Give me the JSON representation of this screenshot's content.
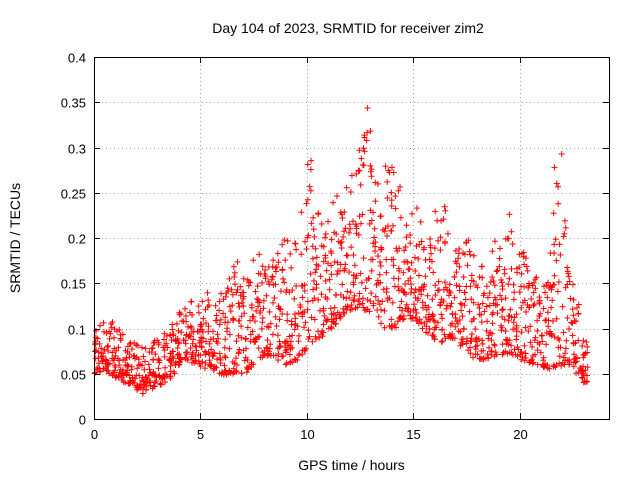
{
  "chart_data": {
    "type": "scatter",
    "title": "Day 104 of 2023, SRMTID for receiver zim2",
    "xlabel": "GPS time / hours",
    "ylabel": "SRMTID / TECUs",
    "xlim": [
      0,
      24.2
    ],
    "ylim": [
      0,
      0.4
    ],
    "xticks": [
      0,
      5,
      10,
      15,
      20
    ],
    "xtick_labels": [
      "0",
      "5",
      "10",
      "15",
      "20"
    ],
    "yticks": [
      0,
      0.05,
      0.1,
      0.15,
      0.2,
      0.25,
      0.3,
      0.35,
      0.4
    ],
    "ytick_labels": [
      "0",
      "0.05",
      "0.1",
      "0.15",
      "0.2",
      "0.25",
      "0.3",
      "0.35",
      "0.4"
    ],
    "grid": true,
    "marker": "plus",
    "color": "#ff0000",
    "series": [
      {
        "name": "SRMTID",
        "x": [
          0.0,
          0.2,
          0.4,
          0.6,
          0.8,
          1.0,
          1.2,
          1.4,
          1.6,
          1.8,
          2.0,
          2.2,
          2.4,
          2.6,
          2.8,
          3.0,
          3.2,
          3.4,
          3.6,
          3.8,
          4.0,
          4.2,
          4.4,
          4.6,
          4.8,
          5.0,
          5.2,
          5.4,
          5.6,
          5.8,
          6.0,
          6.2,
          6.4,
          6.6,
          6.8,
          7.0,
          7.2,
          7.4,
          7.6,
          7.8,
          8.0,
          8.2,
          8.4,
          8.6,
          8.8,
          9.0,
          9.2,
          9.4,
          9.6,
          9.8,
          10.0,
          10.2,
          10.4,
          10.6,
          10.8,
          11.0,
          11.2,
          11.4,
          11.6,
          11.8,
          12.0,
          12.2,
          12.4,
          12.6,
          12.8,
          13.0,
          13.2,
          13.4,
          13.6,
          13.8,
          14.0,
          14.2,
          14.4,
          14.6,
          14.8,
          15.0,
          15.2,
          15.4,
          15.6,
          15.8,
          16.0,
          16.2,
          16.4,
          16.6,
          16.8,
          17.0,
          17.2,
          17.4,
          17.6,
          17.8,
          18.0,
          18.2,
          18.4,
          18.6,
          18.8,
          19.0,
          19.2,
          19.4,
          19.6,
          19.8,
          20.0,
          20.2,
          20.4,
          20.6,
          20.8,
          21.0,
          21.2,
          21.4,
          21.6,
          21.8,
          22.0,
          22.2,
          22.4,
          22.6,
          22.8,
          23.0
        ],
        "y_low": [
          0.05,
          0.052,
          0.055,
          0.05,
          0.048,
          0.045,
          0.04,
          0.04,
          0.038,
          0.035,
          0.032,
          0.028,
          0.03,
          0.033,
          0.036,
          0.038,
          0.04,
          0.045,
          0.05,
          0.055,
          0.06,
          0.065,
          0.065,
          0.062,
          0.06,
          0.058,
          0.056,
          0.055,
          0.054,
          0.05,
          0.048,
          0.048,
          0.05,
          0.052,
          0.05,
          0.05,
          0.055,
          0.06,
          0.065,
          0.068,
          0.07,
          0.07,
          0.068,
          0.065,
          0.062,
          0.06,
          0.062,
          0.065,
          0.07,
          0.075,
          0.08,
          0.085,
          0.088,
          0.09,
          0.095,
          0.1,
          0.105,
          0.11,
          0.115,
          0.12,
          0.12,
          0.122,
          0.125,
          0.12,
          0.118,
          0.115,
          0.11,
          0.105,
          0.1,
          0.1,
          0.1,
          0.105,
          0.11,
          0.112,
          0.11,
          0.108,
          0.105,
          0.1,
          0.095,
          0.09,
          0.085,
          0.085,
          0.088,
          0.09,
          0.088,
          0.085,
          0.08,
          0.075,
          0.07,
          0.068,
          0.066,
          0.065,
          0.065,
          0.066,
          0.068,
          0.07,
          0.072,
          0.072,
          0.07,
          0.068,
          0.065,
          0.063,
          0.062,
          0.06,
          0.058,
          0.056,
          0.055,
          0.055,
          0.056,
          0.058,
          0.06,
          0.06,
          0.058,
          0.05,
          0.045,
          0.04
        ],
        "y_high": [
          0.1,
          0.105,
          0.108,
          0.11,
          0.108,
          0.1,
          0.095,
          0.09,
          0.088,
          0.085,
          0.082,
          0.08,
          0.082,
          0.085,
          0.088,
          0.09,
          0.095,
          0.1,
          0.105,
          0.11,
          0.118,
          0.125,
          0.13,
          0.128,
          0.125,
          0.13,
          0.14,
          0.135,
          0.13,
          0.14,
          0.15,
          0.16,
          0.17,
          0.18,
          0.16,
          0.17,
          0.175,
          0.18,
          0.185,
          0.18,
          0.17,
          0.175,
          0.18,
          0.19,
          0.2,
          0.2,
          0.21,
          0.22,
          0.24,
          0.27,
          0.3,
          0.26,
          0.24,
          0.23,
          0.22,
          0.23,
          0.24,
          0.25,
          0.26,
          0.27,
          0.27,
          0.28,
          0.3,
          0.33,
          0.36,
          0.3,
          0.27,
          0.26,
          0.28,
          0.29,
          0.3,
          0.28,
          0.24,
          0.22,
          0.23,
          0.24,
          0.22,
          0.2,
          0.2,
          0.22,
          0.25,
          0.26,
          0.24,
          0.21,
          0.2,
          0.19,
          0.19,
          0.2,
          0.2,
          0.19,
          0.18,
          0.18,
          0.19,
          0.2,
          0.2,
          0.19,
          0.22,
          0.23,
          0.21,
          0.2,
          0.19,
          0.18,
          0.17,
          0.16,
          0.15,
          0.15,
          0.16,
          0.2,
          0.28,
          0.3,
          0.22,
          0.17,
          0.15,
          0.13,
          0.1,
          0.09
        ]
      }
    ]
  }
}
